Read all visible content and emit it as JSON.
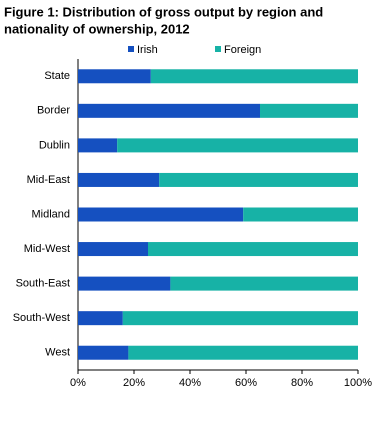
{
  "chart_data": {
    "type": "stacked-bar-horizontal",
    "title": [
      "Figure 1: Distribution  of gross  output by region and",
      "nationality of ownership, 2012"
    ],
    "categories": [
      "State",
      "Border",
      "Dublin",
      "Mid-East",
      "Midland",
      "Mid-West",
      "South-East",
      "South-West",
      "West"
    ],
    "series": [
      {
        "name": "Irish",
        "color": "#1550c0",
        "values": [
          26,
          65,
          14,
          29,
          59,
          25,
          33,
          16,
          18
        ]
      },
      {
        "name": "Foreign",
        "color": "#17b2a6",
        "values": [
          74,
          35,
          86,
          71,
          41,
          75,
          67,
          84,
          82
        ]
      }
    ],
    "xlim": [
      0,
      100
    ],
    "xticks": [
      {
        "value": 0,
        "label": "0%"
      },
      {
        "value": 20,
        "label": "20%"
      },
      {
        "value": 40,
        "label": "40%"
      },
      {
        "value": 60,
        "label": "60%"
      },
      {
        "value": 80,
        "label": "80%"
      },
      {
        "value": 100,
        "label": "100%"
      }
    ],
    "legend": "top"
  }
}
